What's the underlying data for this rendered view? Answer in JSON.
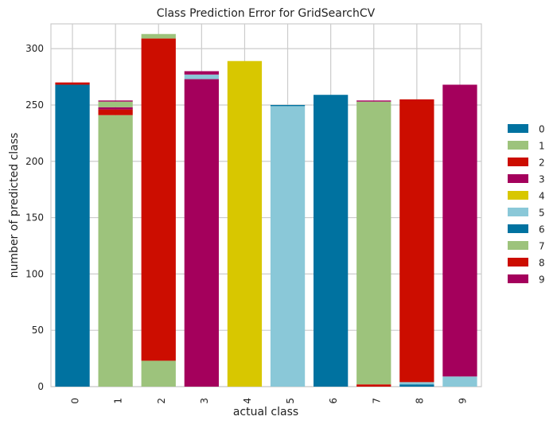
{
  "chart_data": {
    "type": "bar",
    "stacked": true,
    "title": "Class Prediction Error for GridSearchCV",
    "xlabel": "actual class",
    "ylabel": "number of predicted class",
    "categories": [
      "0",
      "1",
      "2",
      "3",
      "4",
      "5",
      "6",
      "7",
      "8",
      "9"
    ],
    "ylim": [
      0,
      322
    ],
    "yticks": [
      0,
      50,
      100,
      150,
      200,
      250,
      300
    ],
    "grid": true,
    "legend_position": "right",
    "series": [
      {
        "name": "0",
        "color": "#0072a0",
        "values": [
          268,
          0,
          0,
          0,
          0,
          0,
          0,
          0,
          2,
          0
        ]
      },
      {
        "name": "1",
        "color": "#9dc37c",
        "values": [
          0,
          241,
          23,
          0,
          0,
          0,
          0,
          0,
          0,
          0
        ]
      },
      {
        "name": "2",
        "color": "#cc0d00",
        "values": [
          0,
          5,
          286,
          0,
          0,
          0,
          0,
          2,
          0,
          0
        ]
      },
      {
        "name": "3",
        "color": "#a4005c",
        "values": [
          0,
          2,
          0,
          273,
          0,
          0,
          0,
          0,
          0,
          0
        ]
      },
      {
        "name": "4",
        "color": "#d8c700",
        "values": [
          0,
          0,
          0,
          0,
          289,
          0,
          0,
          0,
          0,
          0
        ]
      },
      {
        "name": "5",
        "color": "#8ac8d8",
        "values": [
          0,
          0,
          0,
          4,
          0,
          249,
          0,
          0,
          2,
          9
        ]
      },
      {
        "name": "6",
        "color": "#0072a0",
        "values": [
          0,
          0,
          0,
          0,
          0,
          1,
          259,
          0,
          0,
          0
        ]
      },
      {
        "name": "7",
        "color": "#9dc37c",
        "values": [
          0,
          5,
          4,
          0,
          0,
          0,
          0,
          251,
          0,
          0
        ]
      },
      {
        "name": "8",
        "color": "#cc0d00",
        "values": [
          2,
          0,
          0,
          0,
          0,
          0,
          0,
          0,
          251,
          0
        ]
      },
      {
        "name": "9",
        "color": "#a4005c",
        "values": [
          0,
          1,
          0,
          3,
          0,
          0,
          0,
          1,
          0,
          259
        ]
      }
    ]
  }
}
